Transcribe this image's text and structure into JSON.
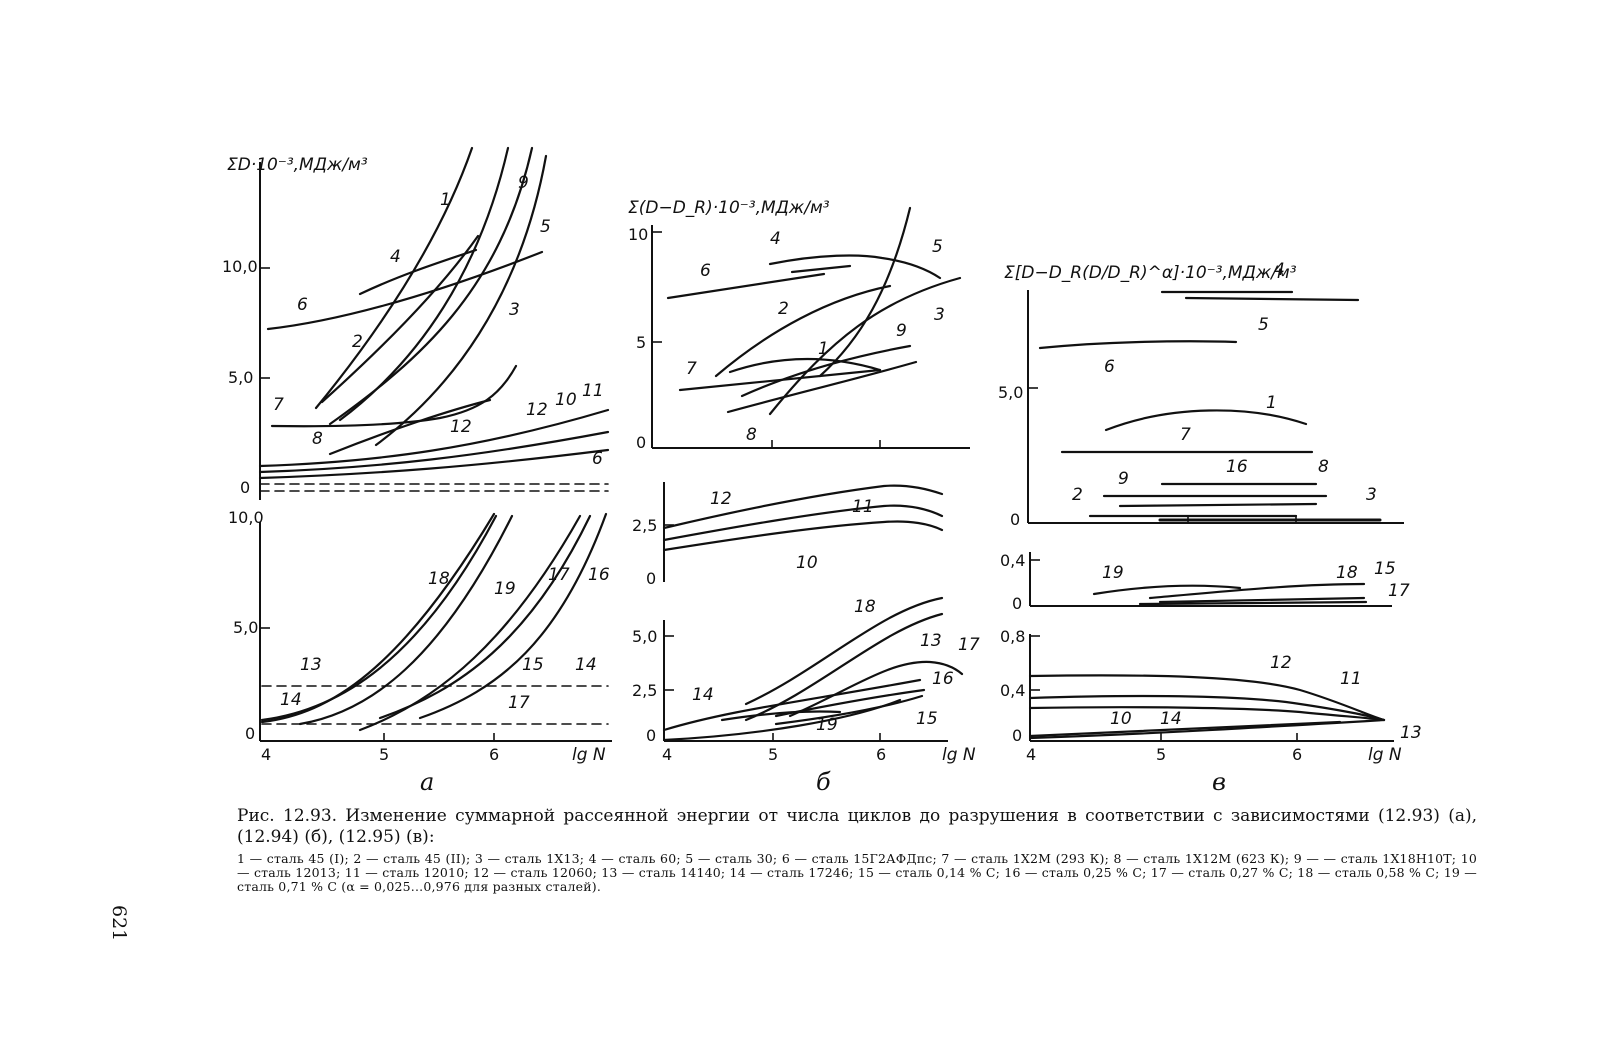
{
  "page_number": "621",
  "panels": {
    "a": {
      "label": "a",
      "ylabel": "ΣD·10⁻³,МДж/м³",
      "top_yticks": [
        "10,0",
        "5,0",
        "0"
      ],
      "bottom_yticks": [
        "10,0",
        "5,0",
        "0"
      ],
      "xticks": [
        "4",
        "5",
        "6"
      ],
      "xlabel": "lg N"
    },
    "b": {
      "label": "б",
      "ylabel": "Σ(D−D_R)·10⁻³,МДж/м³",
      "top_yticks": [
        "10",
        "5",
        "0"
      ],
      "mid_yticks": [
        "2,5",
        "0"
      ],
      "bottom_yticks": [
        "5,0",
        "2,5",
        "0"
      ],
      "xticks": [
        "4",
        "5",
        "6"
      ],
      "xlabel": "lg N"
    },
    "c": {
      "label": "в",
      "ylabel": "Σ[D−D_R(D/D_R)^α]·10⁻³,МДж/м³",
      "top_yticks": [
        "5,0",
        "0"
      ],
      "mid_yticks": [
        "0,4",
        "0"
      ],
      "bottom_yticks": [
        "0,8",
        "0,4",
        "0"
      ],
      "xticks": [
        "4",
        "5",
        "6"
      ],
      "xlabel": "lg N"
    }
  },
  "chart_data": [
    {
      "type": "line",
      "panel": "a-top",
      "xlabel": "lg N",
      "ylabel": "ΣD·10⁻³,МДж/м³",
      "xlim": [
        4,
        7.1
      ],
      "ylim": [
        0,
        14
      ],
      "series": [
        {
          "name": "1",
          "x": [
            4.5,
            5.3,
            6.0,
            6.4
          ],
          "y": [
            3.5,
            7.0,
            11.5,
            16.0
          ]
        },
        {
          "name": "2",
          "x": [
            4.5,
            5.0,
            5.6
          ],
          "y": [
            4.0,
            6.5,
            10.2
          ]
        },
        {
          "name": "3",
          "x": [
            5.0,
            6.0,
            7.1
          ],
          "y": [
            0.5,
            4.5,
            16.0
          ]
        },
        {
          "name": "4",
          "x": [
            5.0,
            5.6,
            6.2
          ],
          "y": [
            9.0,
            10.0,
            11.0
          ]
        },
        {
          "name": "5",
          "x": [
            4.7,
            5.8,
            6.8
          ],
          "y": [
            3.0,
            9.0,
            16.0
          ]
        },
        {
          "name": "6",
          "x": [
            4.0,
            5.0,
            6.0,
            6.8
          ],
          "y": [
            7.2,
            7.9,
            9.2,
            10.4
          ]
        },
        {
          "name": "7",
          "x": [
            4.2,
            5.0,
            5.8,
            6.5
          ],
          "y": [
            2.6,
            2.6,
            3.2,
            4.8
          ]
        },
        {
          "name": "8",
          "x": [
            4.6,
            5.6,
            6.4
          ],
          "y": [
            3.0,
            5.0,
            8.5
          ]
        },
        {
          "name": "9",
          "x": [
            4.6,
            5.7,
            6.5
          ],
          "y": [
            4.0,
            9.0,
            16.0
          ]
        },
        {
          "name": "10",
          "x": [
            4.0,
            5.5,
            7.1
          ],
          "y": [
            1.0,
            1.6,
            3.5
          ]
        },
        {
          "name": "11",
          "x": [
            4.0,
            5.5,
            7.1
          ],
          "y": [
            0.7,
            1.2,
            2.8
          ]
        },
        {
          "name": "12",
          "x": [
            4.0,
            5.5,
            7.1
          ],
          "y": [
            0.5,
            0.9,
            2.0
          ]
        }
      ]
    },
    {
      "type": "line",
      "panel": "a-bottom",
      "xlabel": "lg N",
      "xlim": [
        4,
        7.1
      ],
      "ylim": [
        0,
        10
      ],
      "series": [
        {
          "name": "13",
          "x": [
            4.0,
            5.0,
            6.0
          ],
          "y": [
            0.3,
            2.5,
            10.0
          ]
        },
        {
          "name": "14",
          "x": [
            4.0,
            7.1
          ],
          "y": [
            2.0,
            2.0
          ]
        },
        {
          "name": "15",
          "x": [
            5.0,
            6.0,
            7.1
          ],
          "y": [
            0.2,
            3.0,
            10.0
          ]
        },
        {
          "name": "16",
          "x": [
            5.6,
            6.5,
            7.1
          ],
          "y": [
            0.5,
            5.0,
            10.0
          ]
        },
        {
          "name": "17",
          "x": [
            4.0,
            7.1
          ],
          "y": [
            0.3,
            0.3
          ]
        },
        {
          "name": "18",
          "x": [
            4.0,
            5.0,
            5.9
          ],
          "y": [
            0.2,
            2.8,
            10.0
          ]
        },
        {
          "name": "19",
          "x": [
            4.3,
            5.3,
            6.1
          ],
          "y": [
            0.3,
            3.0,
            10.0
          ]
        }
      ]
    },
    {
      "type": "line",
      "panel": "b-top",
      "xlabel": "lg N",
      "ylabel": "Σ(D−D_R)·10⁻³,МДж/м³",
      "xlim": [
        4,
        6.9
      ],
      "ylim": [
        0,
        10
      ],
      "series": [
        {
          "name": "1",
          "x": [
            4.4,
            5.5,
            6.2
          ],
          "y": [
            3.5,
            4.2,
            3.5
          ]
        },
        {
          "name": "2",
          "x": [
            4.4,
            5.5,
            6.3
          ],
          "y": [
            3.4,
            6.2,
            7.3
          ]
        },
        {
          "name": "3",
          "x": [
            5.0,
            6.0,
            6.8
          ],
          "y": [
            1.3,
            5.5,
            7.8
          ]
        },
        {
          "name": "4",
          "x": [
            5.0,
            5.8,
            6.5
          ],
          "y": [
            8.5,
            8.9,
            8.2
          ]
        },
        {
          "name": "5",
          "x": [
            5.5,
            6.2,
            6.5
          ],
          "y": [
            2.0,
            6.0,
            13.0
          ]
        },
        {
          "name": "6",
          "x": [
            4.0,
            5.5
          ],
          "y": [
            7.0,
            8.0
          ]
        },
        {
          "name": "7",
          "x": [
            4.1,
            5.3
          ],
          "y": [
            2.8,
            3.4
          ]
        },
        {
          "name": "8",
          "x": [
            4.6,
            6.4
          ],
          "y": [
            1.6,
            4.0
          ]
        },
        {
          "name": "9",
          "x": [
            4.7,
            6.4
          ],
          "y": [
            2.0,
            4.6
          ]
        }
      ]
    },
    {
      "type": "line",
      "panel": "b-mid",
      "xlabel": "lg N",
      "xlim": [
        4,
        6.9
      ],
      "ylim": [
        0,
        4
      ],
      "series": [
        {
          "name": "10",
          "x": [
            4.0,
            5.5,
            6.6
          ],
          "y": [
            1.4,
            2.2,
            2.5
          ]
        },
        {
          "name": "11",
          "x": [
            4.0,
            5.5,
            6.6
          ],
          "y": [
            1.7,
            2.5,
            3.0
          ]
        },
        {
          "name": "12",
          "x": [
            4.0,
            5.5,
            6.6
          ],
          "y": [
            2.2,
            3.2,
            3.6
          ]
        }
      ]
    },
    {
      "type": "line",
      "panel": "b-bottom",
      "xlabel": "lg N",
      "xlim": [
        4,
        6.9
      ],
      "ylim": [
        0,
        6.5
      ],
      "series": [
        {
          "name": "13",
          "x": [
            4.7,
            5.8,
            6.7
          ],
          "y": [
            0.5,
            3.5,
            6.0
          ]
        },
        {
          "name": "14",
          "x": [
            4.0,
            5.5,
            6.7
          ],
          "y": [
            0.5,
            2.0,
            2.5
          ]
        },
        {
          "name": "15",
          "x": [
            5.0,
            6.0,
            6.6
          ],
          "y": [
            0.5,
            1.2,
            2.0
          ]
        },
        {
          "name": "16",
          "x": [
            5.0,
            6.0,
            6.6
          ],
          "y": [
            0.8,
            1.8,
            2.6
          ]
        },
        {
          "name": "17",
          "x": [
            5.5,
            6.3,
            6.9
          ],
          "y": [
            1.0,
            3.5,
            3.3
          ]
        },
        {
          "name": "18",
          "x": [
            4.7,
            5.8,
            6.7
          ],
          "y": [
            0.8,
            4.5,
            6.8
          ]
        },
        {
          "name": "19",
          "x": [
            4.5,
            5.5
          ],
          "y": [
            0.6,
            1.5
          ]
        }
      ]
    },
    {
      "type": "line",
      "panel": "c-top",
      "xlabel": "lg N",
      "ylabel": "Σ[D−D_R(D/D_R)^α]·10⁻³,МДж/м³",
      "xlim": [
        4,
        7.2
      ],
      "ylim": [
        0,
        9
      ],
      "series": [
        {
          "name": "1",
          "x": [
            4.6,
            5.8,
            6.6
          ],
          "y": [
            3.5,
            4.2,
            3.6
          ]
        },
        {
          "name": "2",
          "x": [
            4.5,
            6.0
          ],
          "y": [
            0.3,
            0.3
          ]
        },
        {
          "name": "3",
          "x": [
            5.5,
            7.2
          ],
          "y": [
            0.3,
            0.3
          ]
        },
        {
          "name": "4",
          "x": [
            5.0,
            6.0
          ],
          "y": [
            8.3,
            8.3
          ]
        },
        {
          "name": "5",
          "x": [
            5.0,
            6.8
          ],
          "y": [
            8.0,
            8.0
          ]
        },
        {
          "name": "6",
          "x": [
            4.1,
            5.5
          ],
          "y": [
            6.8,
            7.0
          ]
        },
        {
          "name": "7",
          "x": [
            4.2,
            6.4
          ],
          "y": [
            2.6,
            2.6
          ]
        },
        {
          "name": "8",
          "x": [
            4.6,
            6.2
          ],
          "y": [
            1.2,
            1.2
          ]
        },
        {
          "name": "9",
          "x": [
            4.5,
            6.5
          ],
          "y": [
            0.8,
            0.9
          ]
        },
        {
          "name": "16",
          "x": [
            5.0,
            6.4
          ],
          "y": [
            1.5,
            1.5
          ]
        }
      ]
    },
    {
      "type": "line",
      "panel": "c-mid",
      "xlabel": "lg N",
      "xlim": [
        4,
        7.2
      ],
      "ylim": [
        0,
        0.5
      ],
      "series": [
        {
          "name": "15",
          "x": [
            5.0,
            6.5
          ],
          "y": [
            0.05,
            0.1
          ]
        },
        {
          "name": "17",
          "x": [
            5.0,
            6.5
          ],
          "y": [
            0.02,
            0.06
          ]
        },
        {
          "name": "18",
          "x": [
            5.0,
            6.6
          ],
          "y": [
            0.08,
            0.2
          ]
        },
        {
          "name": "19",
          "x": [
            4.5,
            5.5
          ],
          "y": [
            0.12,
            0.16
          ]
        }
      ]
    },
    {
      "type": "line",
      "panel": "c-bottom",
      "xlabel": "lg N",
      "xlim": [
        4,
        7.2
      ],
      "ylim": [
        0,
        0.85
      ],
      "series": [
        {
          "name": "10",
          "x": [
            4.0,
            5.5,
            6.5
          ],
          "y": [
            0.25,
            0.25,
            0.15
          ]
        },
        {
          "name": "11",
          "x": [
            4.0,
            5.5,
            6.6
          ],
          "y": [
            0.35,
            0.35,
            0.15
          ]
        },
        {
          "name": "12",
          "x": [
            4.0,
            5.5,
            6.6
          ],
          "y": [
            0.55,
            0.55,
            0.15
          ]
        },
        {
          "name": "13",
          "x": [
            4.0,
            6.6
          ],
          "y": [
            0.05,
            0.12
          ]
        },
        {
          "name": "14",
          "x": [
            4.0,
            6.6
          ],
          "y": [
            0.03,
            0.08
          ]
        }
      ]
    }
  ],
  "caption": {
    "title": "Рис. 12.93. Изменение суммарной рассеянной энергии от числа циклов до разрушения в соответствии с зависимостями (12.93) (а), (12.94) (б), (12.95) (в):",
    "legend": "1 — сталь 45 (I); 2 — сталь 45 (II); 3 — сталь 1Х13; 4 — сталь 60; 5 — сталь 30; 6 — сталь 15Г2АФДпс; 7 — сталь 1Х2М (293 К); 8 — сталь 1Х12М (623 К); 9 — — сталь 1Х18Н10Т; 10 — сталь 12013; 11 — сталь 12010; 12 — сталь 12060; 13 — сталь 14140; 14 — сталь 17246; 15 — сталь 0,14 % С; 16 — сталь 0,25 % С; 17 — сталь 0,27 % С; 18 — сталь 0,58 % С; 19 — сталь 0,71 % С (α = 0,025...0,976 для разных сталей)."
  }
}
